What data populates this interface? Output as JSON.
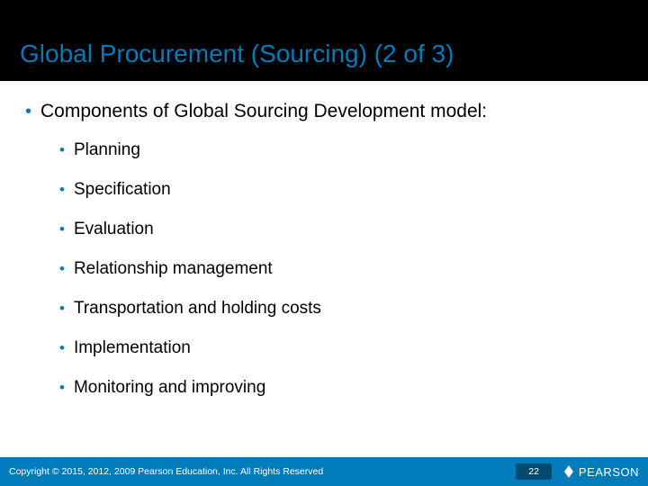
{
  "colors": {
    "title_bar_bg": "#000000",
    "title_text": "#007cba",
    "bullet": "#007cba",
    "body_text": "#000000",
    "footer_bg": "#007cba",
    "footer_text": "#ffffff",
    "page_badge_bg": "#004a70",
    "slide_bg": "#ffffff"
  },
  "typography": {
    "title_fontsize": 28,
    "top_item_fontsize": 21,
    "sub_item_fontsize": 19,
    "footer_fontsize": 10.5,
    "logo_fontsize": 13
  },
  "title": "Global Procurement (Sourcing) (2 of 3)",
  "main": {
    "heading": "Components of Global Sourcing Development model:",
    "items": [
      "Planning",
      "Specification",
      "Evaluation",
      "Relationship management",
      "Transportation and holding costs",
      "Implementation",
      "Monitoring and improving"
    ]
  },
  "footer": {
    "copyright": "Copyright © 2015, 2012, 2009 Pearson Education, Inc. All Rights Reserved",
    "page": "22",
    "logo_text": "PEARSON"
  }
}
